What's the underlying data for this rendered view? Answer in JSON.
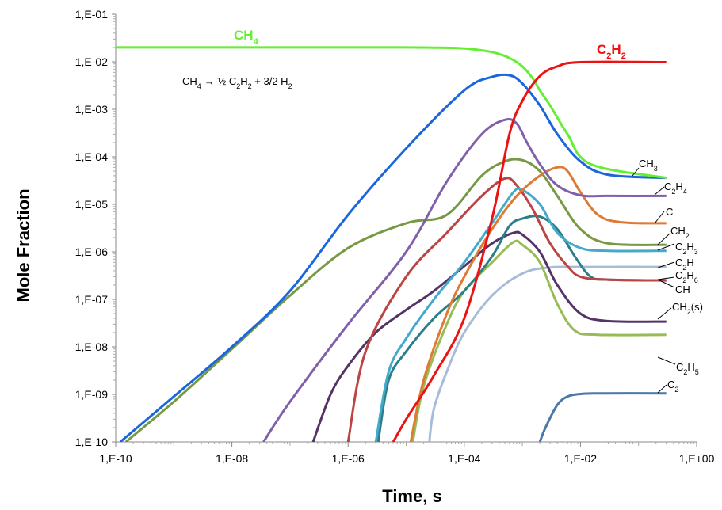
{
  "chart_data": {
    "type": "line",
    "xlabel": "Time, s",
    "ylabel": "Mole Fraction",
    "xscale": "log",
    "yscale": "log",
    "xlim": [
      1e-10,
      1
    ],
    "ylim": [
      1e-10,
      0.1
    ],
    "x_ticks": [
      "1,E-10",
      "1,E-08",
      "1,E-06",
      "1,E-04",
      "1,E-02",
      "1,E+00"
    ],
    "y_ticks": [
      "1,E-10",
      "1,E-09",
      "1,E-08",
      "1,E-07",
      "1,E-06",
      "1,E-05",
      "1,E-04",
      "1,E-03",
      "1,E-02",
      "1,E-01"
    ],
    "annotation": {
      "reaction": "CH₄ →  ½ C₂H₂ + 3/2 H₂"
    },
    "series": [
      {
        "name": "CH4",
        "label": "CH₄",
        "color": "#66ee33",
        "label_color": "#66ee33",
        "x": [
          1e-10,
          1e-07,
          1e-05,
          3e-05,
          0.0001,
          0.0003,
          0.0006,
          0.001,
          0.0015,
          0.002,
          0.003,
          0.006,
          0.015,
          0.3
        ],
        "y": [
          0.02,
          0.02,
          0.02,
          0.0198,
          0.019,
          0.016,
          0.012,
          0.008,
          0.0045,
          0.0025,
          0.0012,
          0.0003,
          7e-05,
          3.6e-05
        ]
      },
      {
        "name": "C2H2",
        "label": "C₂H₂",
        "color": "#ee1111",
        "label_color": "#ee1111",
        "x": [
          6e-06,
          1e-05,
          3e-05,
          0.0001,
          0.0003,
          0.0006,
          0.001,
          0.002,
          0.004,
          0.01,
          0.3
        ],
        "y": [
          1e-10,
          3e-10,
          2.5e-09,
          4e-08,
          5e-06,
          0.0003,
          0.0015,
          0.005,
          0.008,
          0.0098,
          0.0098
        ]
      },
      {
        "name": "CH3",
        "label": "CH₃",
        "color": "#1a66dd",
        "x": [
          1.2e-10,
          1e-09,
          1e-08,
          1e-07,
          1e-06,
          1e-05,
          0.0001,
          0.0003,
          0.0006,
          0.001,
          0.002,
          0.004,
          0.01,
          0.03,
          0.3
        ],
        "y": [
          1e-10,
          9e-10,
          1e-08,
          1.5e-07,
          6e-06,
          0.00015,
          0.0025,
          0.0048,
          0.0052,
          0.0035,
          0.0012,
          0.0003,
          8e-05,
          4.2e-05,
          3.6e-05
        ]
      },
      {
        "name": "C2H4",
        "label": "C₂H₄",
        "color": "#8060aa",
        "x": [
          3.5e-08,
          1e-07,
          1e-06,
          1e-05,
          5e-05,
          0.0002,
          0.0005,
          0.0008,
          0.0012,
          0.002,
          0.004,
          0.01,
          0.03,
          0.3
        ],
        "y": [
          1e-10,
          7e-10,
          3e-08,
          1e-06,
          3e-05,
          0.0003,
          0.0006,
          0.0005,
          0.0002,
          7e-05,
          2.5e-05,
          1.55e-05,
          1.5e-05,
          1.5e-05
        ]
      },
      {
        "name": "C",
        "label": "C",
        "color": "#dd7a33",
        "x": [
          1.2e-05,
          2e-05,
          5e-05,
          0.0001,
          0.0003,
          0.0008,
          0.002,
          0.004,
          0.006,
          0.01,
          0.02,
          0.05,
          0.3
        ],
        "y": [
          1e-10,
          2e-09,
          5e-08,
          3e-07,
          3e-06,
          1.5e-05,
          4e-05,
          6e-05,
          5e-05,
          1.8e-05,
          6e-06,
          4.2e-06,
          4e-06
        ]
      },
      {
        "name": "CH2",
        "label": "CH₂",
        "color": "#779944",
        "x": [
          1.5e-10,
          1e-09,
          1e-08,
          1e-07,
          1e-06,
          1e-05,
          5e-05,
          0.0002,
          0.0005,
          0.001,
          0.002,
          0.004,
          0.01,
          0.03,
          0.3
        ],
        "y": [
          1e-10,
          7e-10,
          9e-09,
          1.2e-07,
          1.2e-06,
          4e-06,
          6e-06,
          4e-05,
          8e-05,
          8.5e-05,
          5e-05,
          1.5e-05,
          3e-06,
          1.5e-06,
          1.4e-06
        ]
      },
      {
        "name": "C2H3",
        "label": "C₂H₃",
        "color": "#44aacc",
        "x": [
          3e-06,
          5e-06,
          1e-05,
          3e-05,
          0.0001,
          0.0003,
          0.0007,
          0.001,
          0.002,
          0.004,
          0.01,
          0.03,
          0.3
        ],
        "y": [
          1e-10,
          3e-09,
          1.5e-08,
          1e-07,
          6e-07,
          4e-06,
          1.8e-05,
          2e-05,
          1e-05,
          2.5e-06,
          1.2e-06,
          1.05e-06,
          1.05e-06
        ]
      },
      {
        "name": "C2H",
        "label": "C₂H",
        "color": "#a8bcd8",
        "x": [
          2.5e-05,
          3e-05,
          5e-05,
          0.0001,
          0.0003,
          0.001,
          0.003,
          0.01,
          0.3
        ],
        "y": [
          1e-10,
          5e-10,
          3e-09,
          2e-08,
          1.2e-07,
          3.5e-07,
          4.7e-07,
          4.8e-07,
          4.8e-07
        ]
      },
      {
        "name": "C2H6",
        "label": "C₂H₆",
        "color": "#bb4444",
        "x": [
          1e-06,
          2e-06,
          1e-05,
          5e-05,
          0.0002,
          0.0005,
          0.0008,
          0.0015,
          0.003,
          0.006,
          0.01,
          0.03,
          0.3
        ],
        "y": [
          1e-10,
          8e-09,
          3e-07,
          2.5e-06,
          1.5e-05,
          3.5e-05,
          2.5e-05,
          8e-06,
          1.5e-06,
          5e-07,
          3e-07,
          2.6e-07,
          2.5e-07
        ]
      },
      {
        "name": "CH",
        "label": "CH",
        "color": "#2a7f88",
        "x": [
          3.3e-06,
          5e-06,
          1e-05,
          3e-05,
          0.0001,
          0.0003,
          0.0006,
          0.001,
          0.002,
          0.004,
          0.008,
          0.015,
          0.03,
          0.3
        ],
        "y": [
          1e-10,
          2e-09,
          8e-09,
          4e-08,
          1.5e-07,
          8e-07,
          3.5e-06,
          5e-06,
          5.5e-06,
          3e-06,
          8e-07,
          3e-07,
          2.6e-07,
          2.5e-07
        ]
      },
      {
        "name": "CH2(s)",
        "label": "CH₂(s)",
        "color": "#553366",
        "x": [
          2.5e-07,
          5e-07,
          1e-06,
          3e-06,
          1e-05,
          3e-05,
          0.0001,
          0.0003,
          0.0007,
          0.001,
          0.002,
          0.004,
          0.01,
          0.03,
          0.3
        ],
        "y": [
          1e-10,
          1e-09,
          4e-09,
          2e-08,
          6e-08,
          1.5e-07,
          5e-07,
          1.5e-06,
          2.5e-06,
          2.3e-06,
          1e-06,
          2e-07,
          5e-08,
          3.5e-08,
          3.4e-08
        ]
      },
      {
        "name": "C2H5",
        "label": "C₂H₅",
        "color": "#99bb55",
        "x": [
          1.3e-05,
          2e-05,
          5e-05,
          0.0001,
          0.0003,
          0.0007,
          0.001,
          0.002,
          0.004,
          0.008,
          0.02,
          0.3
        ],
        "y": [
          1e-10,
          1.5e-09,
          3e-08,
          1.5e-07,
          6e-07,
          1.6e-06,
          1.4e-06,
          6e-07,
          8e-08,
          2.2e-08,
          1.8e-08,
          1.8e-08
        ]
      },
      {
        "name": "C2",
        "label": "C₂",
        "color": "#4a78aa",
        "x": [
          0.002,
          0.0025,
          0.004,
          0.006,
          0.01,
          0.02,
          0.3
        ],
        "y": [
          1e-10,
          2e-10,
          6e-10,
          9e-10,
          1.02e-09,
          1.05e-09,
          1.05e-09
        ]
      }
    ]
  }
}
